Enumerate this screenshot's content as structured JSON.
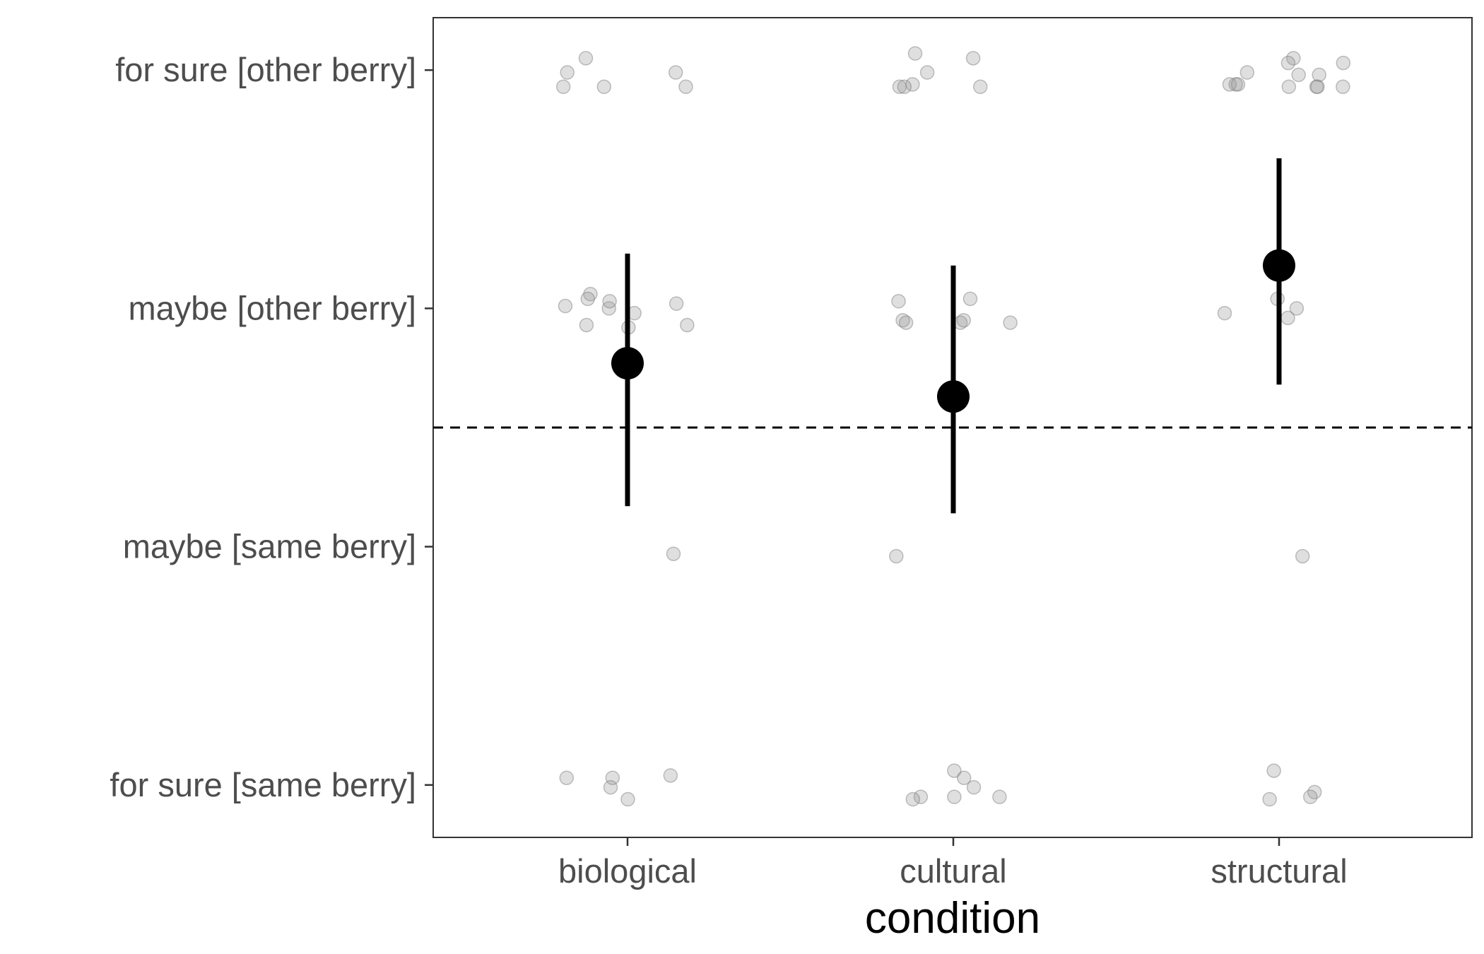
{
  "chart_data": {
    "type": "scatter",
    "title": "",
    "xlabel": "condition",
    "ylabel": "",
    "categories": [
      "biological",
      "cultural",
      "structural"
    ],
    "y_levels": [
      "for sure [same berry]",
      "maybe [same berry]",
      "maybe [other berry]",
      "for sure [other berry]"
    ],
    "y_values": [
      1,
      2,
      3,
      4
    ],
    "ylim": [
      0.78,
      4.22
    ],
    "reference_line": {
      "y": 2.5,
      "style": "dashed"
    },
    "summary": [
      {
        "condition": "biological",
        "mean": 2.77,
        "ci_low": 2.17,
        "ci_high": 3.23
      },
      {
        "condition": "cultural",
        "mean": 2.63,
        "ci_low": 2.14,
        "ci_high": 3.18
      },
      {
        "condition": "structural",
        "mean": 3.18,
        "ci_low": 2.68,
        "ci_high": 3.63
      }
    ],
    "points": [
      {
        "condition": "biological",
        "jitter": [
          [
            -0.185,
            3.99
          ],
          [
            -0.128,
            4.05
          ],
          [
            -0.197,
            3.93
          ],
          [
            -0.072,
            3.93
          ],
          [
            0.148,
            3.99
          ],
          [
            0.179,
            3.93
          ],
          [
            -0.191,
            3.01
          ],
          [
            -0.114,
            3.06
          ],
          [
            -0.122,
            3.04
          ],
          [
            -0.057,
            3.0
          ],
          [
            -0.055,
            3.03
          ],
          [
            0.021,
            2.98
          ],
          [
            -0.126,
            2.93
          ],
          [
            0.003,
            2.92
          ],
          [
            0.15,
            3.02
          ],
          [
            0.183,
            2.93
          ],
          [
            0.141,
            1.97
          ],
          [
            -0.187,
            1.03
          ],
          [
            -0.046,
            1.03
          ],
          [
            -0.052,
            0.99
          ],
          [
            0.001,
            0.94
          ],
          [
            0.132,
            1.04
          ]
        ]
      },
      {
        "condition": "cultural",
        "jitter": [
          [
            -0.117,
            4.07
          ],
          [
            -0.08,
            3.99
          ],
          [
            0.061,
            4.05
          ],
          [
            -0.125,
            3.94
          ],
          [
            -0.165,
            3.93
          ],
          [
            -0.15,
            3.93
          ],
          [
            0.083,
            3.93
          ],
          [
            -0.168,
            3.03
          ],
          [
            0.052,
            3.04
          ],
          [
            -0.155,
            2.95
          ],
          [
            -0.145,
            2.94
          ],
          [
            0.022,
            2.94
          ],
          [
            0.032,
            2.95
          ],
          [
            0.175,
            2.94
          ],
          [
            -0.175,
            1.96
          ],
          [
            0.003,
            1.06
          ],
          [
            0.033,
            1.03
          ],
          [
            0.063,
            0.99
          ],
          [
            -0.1,
            0.95
          ],
          [
            -0.124,
            0.94
          ],
          [
            0.003,
            0.95
          ],
          [
            0.142,
            0.95
          ]
        ]
      },
      {
        "condition": "structural",
        "jitter": [
          [
            0.044,
            4.05
          ],
          [
            0.028,
            4.03
          ],
          [
            0.197,
            4.03
          ],
          [
            -0.098,
            3.99
          ],
          [
            0.06,
            3.98
          ],
          [
            0.123,
            3.98
          ],
          [
            -0.152,
            3.94
          ],
          [
            -0.133,
            3.94
          ],
          [
            -0.126,
            3.94
          ],
          [
            0.03,
            3.93
          ],
          [
            0.115,
            3.93
          ],
          [
            0.118,
            3.93
          ],
          [
            0.196,
            3.93
          ],
          [
            -0.167,
            2.98
          ],
          [
            -0.005,
            3.04
          ],
          [
            0.054,
            3.0
          ],
          [
            0.027,
            2.96
          ],
          [
            0.072,
            1.96
          ],
          [
            -0.016,
            1.06
          ],
          [
            0.109,
            0.97
          ],
          [
            -0.029,
            0.94
          ],
          [
            0.096,
            0.95
          ]
        ]
      }
    ]
  }
}
